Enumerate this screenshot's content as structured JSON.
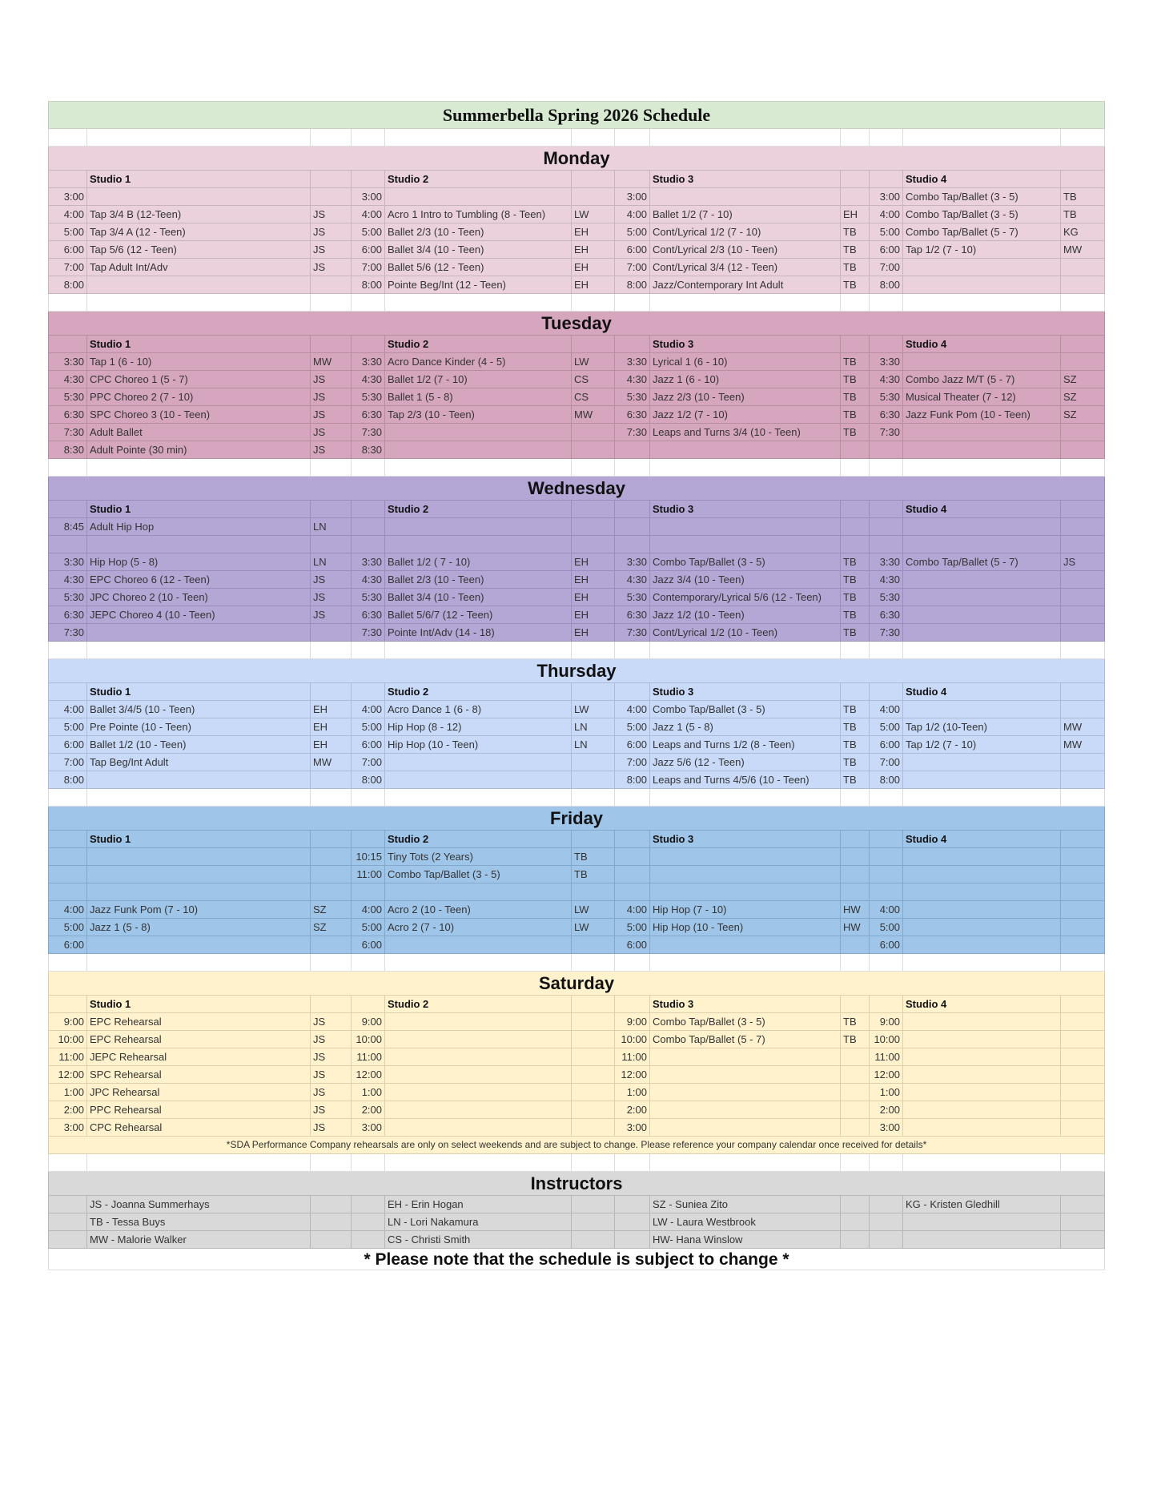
{
  "title": "Summerbella Spring 2026 Schedule",
  "studios": [
    "Studio 1",
    "Studio 2",
    "Studio 3",
    "Studio 4"
  ],
  "days": [
    {
      "name": "Monday",
      "color": "#ead1dc",
      "border": "#c9b3bf",
      "rows": [
        [
          "3:00",
          "",
          "",
          "3:00",
          "",
          "",
          "3:00",
          "",
          "",
          "3:00",
          "Combo Tap/Ballet (3 - 5)",
          "TB"
        ],
        [
          "4:00",
          "Tap 3/4 B (12-Teen)",
          "JS",
          "4:00",
          "Acro 1 Intro to Tumbling (8 - Teen)",
          "LW",
          "4:00",
          "Ballet 1/2 (7 - 10)",
          "EH",
          "4:00",
          "Combo Tap/Ballet (3 - 5)",
          "TB"
        ],
        [
          "5:00",
          "Tap 3/4 A (12 - Teen)",
          "JS",
          "5:00",
          "Ballet 2/3 (10 - Teen)",
          "EH",
          "5:00",
          "Cont/Lyrical 1/2 (7 - 10)",
          "TB",
          "5:00",
          "Combo Tap/Ballet (5 - 7)",
          "KG"
        ],
        [
          "6:00",
          "Tap 5/6 (12 - Teen)",
          "JS",
          "6:00",
          "Ballet 3/4 (10 - Teen)",
          "EH",
          "6:00",
          "Cont/Lyrical 2/3 (10 - Teen)",
          "TB",
          "6:00",
          "Tap 1/2 (7 - 10)",
          "MW"
        ],
        [
          "7:00",
          "Tap Adult Int/Adv",
          "JS",
          "7:00",
          "Ballet 5/6 (12 - Teen)",
          "EH",
          "7:00",
          "Cont/Lyrical 3/4 (12 - Teen)",
          "TB",
          "7:00",
          "",
          ""
        ],
        [
          "8:00",
          "",
          "",
          "8:00",
          "Pointe Beg/Int (12 - Teen)",
          "EH",
          "8:00",
          "Jazz/Contemporary Int Adult",
          "TB",
          "8:00",
          "",
          ""
        ]
      ]
    },
    {
      "name": "Tuesday",
      "color": "#d5a6bd",
      "border": "#b98ca2",
      "rows": [
        [
          "3:30",
          "Tap 1 (6 - 10)",
          "MW",
          "3:30",
          "Acro Dance Kinder (4 - 5)",
          "LW",
          "3:30",
          "Lyrical 1 (6 - 10)",
          "TB",
          "3:30",
          "",
          ""
        ],
        [
          "4:30",
          "CPC Choreo 1 (5 - 7)",
          "JS",
          "4:30",
          "Ballet 1/2 (7 - 10)",
          "CS",
          "4:30",
          "Jazz 1 (6 - 10)",
          "TB",
          "4:30",
          "Combo Jazz M/T (5 - 7)",
          "SZ"
        ],
        [
          "5:30",
          "PPC Choreo 2 (7 - 10)",
          "JS",
          "5:30",
          "Ballet 1 (5 - 8)",
          "CS",
          "5:30",
          "Jazz 2/3 (10 - Teen)",
          "TB",
          "5:30",
          "Musical Theater (7 - 12)",
          "SZ"
        ],
        [
          "6:30",
          "SPC Choreo 3 (10 - Teen)",
          "JS",
          "6:30",
          "Tap 2/3 (10 - Teen)",
          "MW",
          "6:30",
          "Jazz 1/2 (7 - 10)",
          "TB",
          "6:30",
          "Jazz Funk Pom (10 - Teen)",
          "SZ"
        ],
        [
          "7:30",
          "Adult Ballet",
          "JS",
          "7:30",
          "",
          "",
          "7:30",
          "Leaps and Turns 3/4 (10 - Teen)",
          "TB",
          "7:30",
          "",
          ""
        ],
        [
          "8:30",
          "Adult Pointe (30 min)",
          "JS",
          "8:30",
          "",
          "",
          "",
          "",
          "",
          "",
          "",
          ""
        ]
      ]
    },
    {
      "name": "Wednesday",
      "color": "#b4a7d6",
      "border": "#9a8dbd",
      "rows": [
        [
          "8:45",
          "Adult Hip Hop",
          "LN",
          "",
          "",
          "",
          "",
          "",
          "",
          "",
          "",
          ""
        ],
        [
          "",
          "",
          "",
          "",
          "",
          "",
          "",
          "",
          "",
          "",
          "",
          ""
        ],
        [
          "3:30",
          "Hip Hop (5 - 8)",
          "LN",
          "3:30",
          "Ballet 1/2 ( 7 - 10)",
          "EH",
          "3:30",
          "Combo Tap/Ballet (3 - 5)",
          "TB",
          "3:30",
          "Combo Tap/Ballet (5 - 7)",
          "JS"
        ],
        [
          "4:30",
          "EPC Choreo 6 (12 - Teen)",
          "JS",
          "4:30",
          "Ballet 2/3 (10 - Teen)",
          "EH",
          "4:30",
          "Jazz 3/4 (10 - Teen)",
          "TB",
          "4:30",
          "",
          ""
        ],
        [
          "5:30",
          "JPC Choreo 2 (10 - Teen)",
          "JS",
          "5:30",
          "Ballet 3/4 (10 - Teen)",
          "EH",
          "5:30",
          "Contemporary/Lyrical 5/6 (12 - Teen)",
          "TB",
          "5:30",
          "",
          ""
        ],
        [
          "6:30",
          "JEPC Choreo 4 (10 - Teen)",
          "JS",
          "6:30",
          "Ballet 5/6/7 (12 - Teen)",
          "EH",
          "6:30",
          "Jazz 1/2 (10 - Teen)",
          "TB",
          "6:30",
          "",
          ""
        ],
        [
          "7:30",
          "",
          "",
          "7:30",
          "Pointe Int/Adv (14 - 18)",
          "EH",
          "7:30",
          "Cont/Lyrical 1/2 (10 - Teen)",
          "TB",
          "7:30",
          "",
          ""
        ]
      ]
    },
    {
      "name": "Thursday",
      "color": "#c9daf8",
      "border": "#a9bbd9",
      "rows": [
        [
          "4:00",
          "Ballet 3/4/5 (10 - Teen)",
          "EH",
          "4:00",
          "Acro Dance 1 (6 - 8)",
          "LW",
          "4:00",
          "Combo Tap/Ballet (3 - 5)",
          "TB",
          "4:00",
          "",
          ""
        ],
        [
          "5:00",
          "Pre Pointe (10 - Teen)",
          "EH",
          "5:00",
          "Hip Hop (8 - 12)",
          "LN",
          "5:00",
          "Jazz 1 (5 - 8)",
          "TB",
          "5:00",
          "Tap 1/2 (10-Teen)",
          "MW"
        ],
        [
          "6:00",
          "Ballet 1/2 (10 - Teen)",
          "EH",
          "6:00",
          "Hip Hop (10 - Teen)",
          "LN",
          "6:00",
          "Leaps and Turns 1/2 (8 - Teen)",
          "TB",
          "6:00",
          "Tap 1/2 (7 - 10)",
          "MW"
        ],
        [
          "7:00",
          "Tap Beg/Int Adult",
          "MW",
          "7:00",
          "",
          "",
          "7:00",
          "Jazz 5/6 (12 - Teen)",
          "TB",
          "7:00",
          "",
          ""
        ],
        [
          "8:00",
          "",
          "",
          "8:00",
          "",
          "",
          "8:00",
          "Leaps and Turns 4/5/6 (10 - Teen)",
          "TB",
          "8:00",
          "",
          ""
        ]
      ]
    },
    {
      "name": "Friday",
      "color": "#9fc5e8",
      "border": "#82a8cc",
      "rows": [
        [
          "",
          "",
          "",
          "10:15",
          "Tiny Tots (2 Years)",
          "TB",
          "",
          "",
          "",
          "",
          "",
          ""
        ],
        [
          "",
          "",
          "",
          "11:00",
          "Combo Tap/Ballet (3 - 5)",
          "TB",
          "",
          "",
          "",
          "",
          "",
          ""
        ],
        [
          "",
          "",
          "",
          "",
          "",
          "",
          "",
          "",
          "",
          "",
          "",
          ""
        ],
        [
          "4:00",
          "Jazz Funk Pom (7 - 10)",
          "SZ",
          "4:00",
          "Acro 2 (10 - Teen)",
          "LW",
          "4:00",
          "Hip Hop (7 - 10)",
          "HW",
          "4:00",
          "",
          ""
        ],
        [
          "5:00",
          "Jazz 1 (5 - 8)",
          "SZ",
          "5:00",
          "Acro 2 (7 - 10)",
          "LW",
          "5:00",
          "Hip Hop (10  - Teen)",
          "HW",
          "5:00",
          "",
          ""
        ],
        [
          "6:00",
          "",
          "",
          "6:00",
          "",
          "",
          "6:00",
          "",
          "",
          "6:00",
          "",
          ""
        ]
      ]
    },
    {
      "name": "Saturday",
      "color": "#fff2cc",
      "border": "#ddd0aa",
      "rows": [
        [
          "9:00",
          "EPC Rehearsal",
          "JS",
          "9:00",
          "",
          "",
          "9:00",
          "Combo Tap/Ballet (3 - 5)",
          "TB",
          "9:00",
          "",
          ""
        ],
        [
          "10:00",
          "EPC Rehearsal",
          "JS",
          "10:00",
          "",
          "",
          "10:00",
          "Combo Tap/Ballet (5 - 7)",
          "TB",
          "10:00",
          "",
          ""
        ],
        [
          "11:00",
          "JEPC Rehearsal",
          "JS",
          "11:00",
          "",
          "",
          "11:00",
          "",
          "",
          "11:00",
          "",
          ""
        ],
        [
          "12:00",
          "SPC Rehearsal",
          "JS",
          "12:00",
          "",
          "",
          "12:00",
          "",
          "",
          "12:00",
          "",
          ""
        ],
        [
          "1:00",
          "JPC Rehearsal",
          "JS",
          "1:00",
          "",
          "",
          "1:00",
          "",
          "",
          "1:00",
          "",
          ""
        ],
        [
          "2:00",
          "PPC Rehearsal",
          "JS",
          "2:00",
          "",
          "",
          "2:00",
          "",
          "",
          "2:00",
          "",
          ""
        ],
        [
          "3:00",
          "CPC Rehearsal",
          "JS",
          "3:00",
          "",
          "",
          "3:00",
          "",
          "",
          "3:00",
          "",
          ""
        ]
      ],
      "note": "*SDA Performance Company rehearsals are only on select weekends and are subject to change. Please reference your company calendar once received for details*"
    }
  ],
  "instructors": {
    "title": "Instructors",
    "color": "#d9d9d9",
    "border": "#b7b7b7",
    "rows": [
      [
        "JS - Joanna Summerhays",
        "EH - Erin Hogan",
        "SZ - Suniea Zito",
        "KG - Kristen Gledhill"
      ],
      [
        "TB - Tessa Buys",
        "LN - Lori Nakamura",
        "LW - Laura Westbrook",
        ""
      ],
      [
        "MW - Malorie Walker",
        "CS - Christi Smith",
        "HW- Hana Winslow",
        ""
      ]
    ]
  },
  "footer_note": "* Please note that the schedule is subject to change *"
}
